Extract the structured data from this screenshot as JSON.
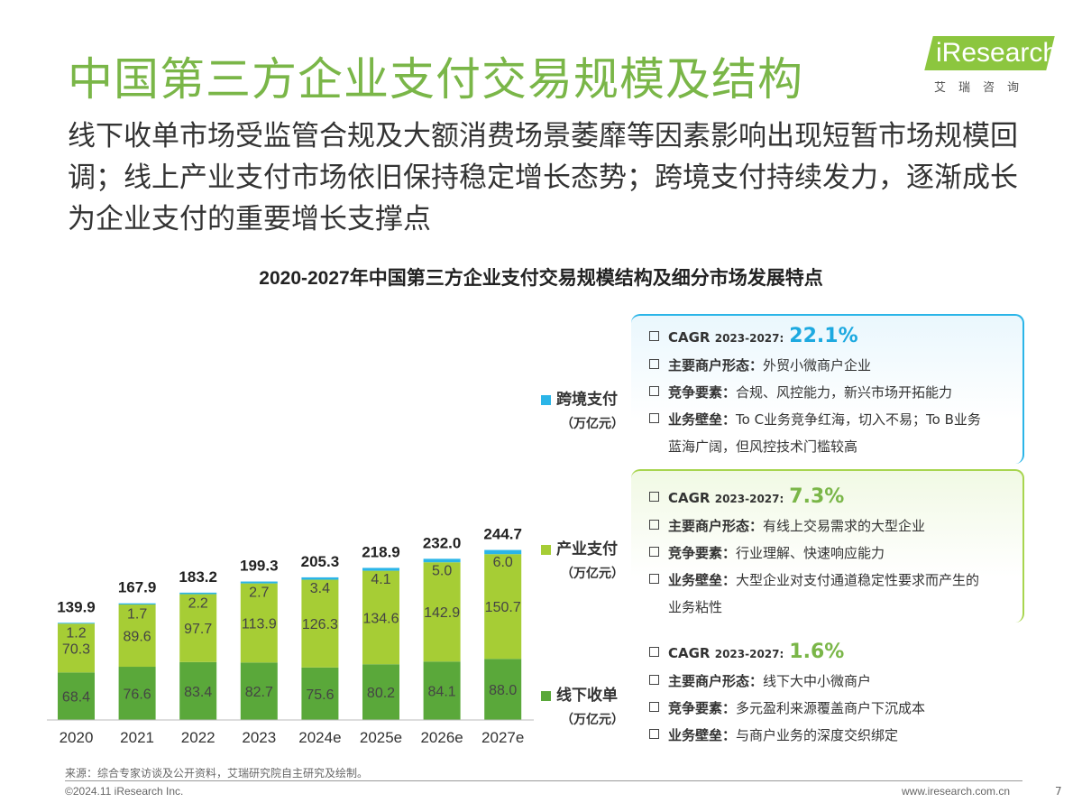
{
  "page": {
    "title": "中国第三方企业支付交易规模及结构",
    "subtitle": "线下收单市场受监管合规及大额消费场景萎靡等因素影响出现短暂市场规模回调；线上产业支付市场依旧保持稳定增长态势；跨境支付持续发力，逐渐成长为企业支付的重要增长支撑点",
    "logo_text": "iResearch",
    "logo_sub": "艾瑞咨询",
    "source": "来源：综合专家访谈及公开资料，艾瑞研究院自主研究及绘制。",
    "footer_left": "©2024.11 iResearch Inc.",
    "footer_right": "www.iresearch.com.cn",
    "page_number": "7"
  },
  "chart_data": {
    "type": "bar",
    "stacked": true,
    "title": "2020-2027年中国第三方企业支付交易规模结构及细分市场发展特点",
    "categories": [
      "2020",
      "2021",
      "2022",
      "2023",
      "2024e",
      "2025e",
      "2026e",
      "2027e"
    ],
    "totals": [
      "139.9",
      "167.9",
      "183.2",
      "199.3",
      "205.3",
      "218.9",
      "232.0",
      "244.7"
    ],
    "series": [
      {
        "name": "线下收单",
        "unit": "（万亿元）",
        "color": "#5aa83a",
        "values": [
          68.4,
          76.6,
          83.4,
          82.7,
          75.6,
          80.2,
          84.1,
          88.0
        ]
      },
      {
        "name": "产业支付",
        "unit": "（万亿元）",
        "color": "#a6cd35",
        "values": [
          70.3,
          89.6,
          97.7,
          113.9,
          126.3,
          134.6,
          142.9,
          150.7
        ]
      },
      {
        "name": "跨境支付",
        "unit": "（万亿元）",
        "color": "#2bb5e8",
        "values": [
          1.2,
          1.7,
          2.2,
          2.7,
          3.4,
          4.1,
          5.0,
          6.0
        ]
      }
    ],
    "ylim": [
      0,
      260
    ]
  },
  "cards": [
    {
      "cagr_label": "CAGR",
      "cagr_period": "2023-2027:",
      "cagr_value": "22.1%",
      "rows": [
        {
          "key": "主要商户形态：",
          "text": "外贸小微商户企业"
        },
        {
          "key": "竞争要素：",
          "text": "合规、风控能力，新兴市场开拓能力"
        },
        {
          "key": "业务壁垒：",
          "text": "To C业务竞争红海，切入不易；To B业务"
        }
      ],
      "continuation": "蓝海广阔，但风控技术门槛较高"
    },
    {
      "cagr_label": "CAGR",
      "cagr_period": "2023-2027:",
      "cagr_value": "7.3%",
      "rows": [
        {
          "key": "主要商户形态：",
          "text": "有线上交易需求的大型企业"
        },
        {
          "key": "竞争要素：",
          "text": "行业理解、快速响应能力"
        },
        {
          "key": "业务壁垒：",
          "text": "大型企业对支付通道稳定性要求而产生的"
        }
      ],
      "continuation": "业务粘性"
    },
    {
      "cagr_label": "CAGR",
      "cagr_period": "2023-2027:",
      "cagr_value": "1.6%",
      "rows": [
        {
          "key": "主要商户形态：",
          "text": "线下大中小微商户"
        },
        {
          "key": "竞争要素：",
          "text": "多元盈利来源覆盖商户下沉成本"
        },
        {
          "key": "业务壁垒：",
          "text": "与商户业务的深度交织绑定"
        }
      ],
      "continuation": ""
    }
  ]
}
